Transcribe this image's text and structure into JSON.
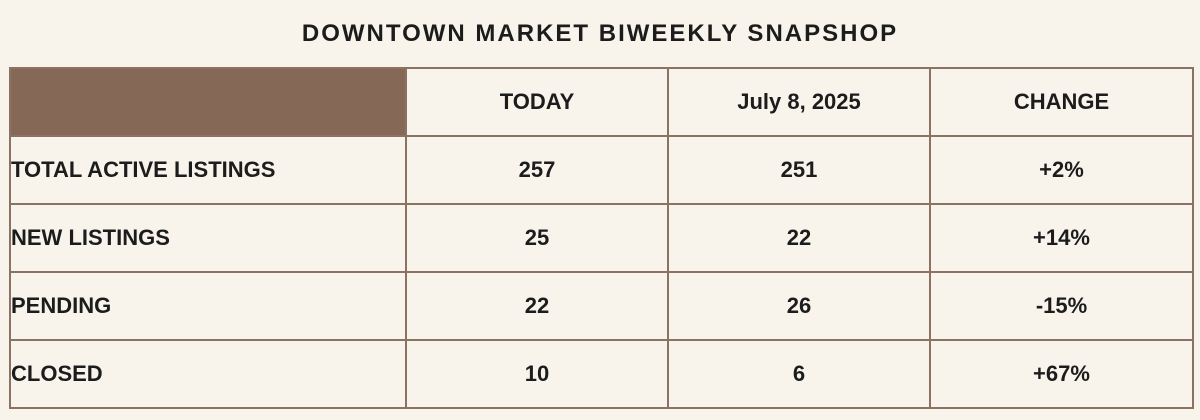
{
  "title": "DOWNTOWN MARKET BIWEEKLY SNAPSHOP",
  "table": {
    "headers": {
      "corner": "",
      "today": "TODAY",
      "date": "July 8, 2025",
      "change": "CHANGE"
    },
    "rows": [
      {
        "label": "TOTAL ACTIVE LISTINGS",
        "today": "257",
        "previous": "251",
        "change": "+2%"
      },
      {
        "label": "NEW LISTINGS",
        "today": "25",
        "previous": "22",
        "change": "+14%"
      },
      {
        "label": "PENDING",
        "today": "22",
        "previous": "26",
        "change": "-15%"
      },
      {
        "label": "CLOSED",
        "today": "10",
        "previous": "6",
        "change": "+67%"
      }
    ]
  },
  "colors": {
    "background": "#f8f4ec",
    "header_corner": "#856856",
    "border": "#8b7263",
    "text": "#1c1c1c"
  }
}
